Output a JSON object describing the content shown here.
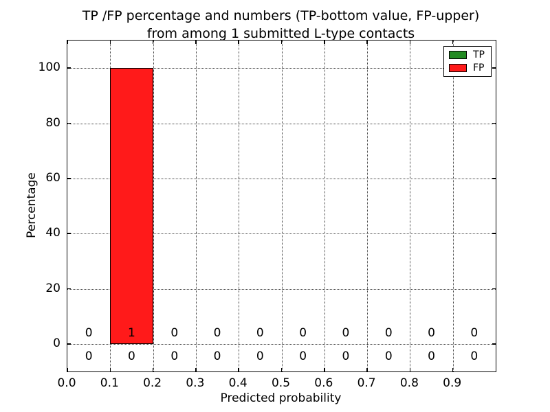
{
  "figure": {
    "background": "#ffffff"
  },
  "chart_data": {
    "type": "bar",
    "title_lines": [
      "TP /FP percentage and numbers (TP-bottom value, FP-upper)",
      "from among 1 submitted L-type contacts"
    ],
    "xlabel": "Predicted probability",
    "ylabel": "Percentage",
    "xlim": [
      0.0,
      1.0
    ],
    "ylim": [
      -10,
      110
    ],
    "xticks": [
      0.0,
      0.1,
      0.2,
      0.3,
      0.4,
      0.5,
      0.6,
      0.7,
      0.8,
      0.9
    ],
    "xtick_labels": [
      "0.0",
      "0.1",
      "0.2",
      "0.3",
      "0.4",
      "0.5",
      "0.6",
      "0.7",
      "0.8",
      "0.9"
    ],
    "yticks": [
      0,
      20,
      40,
      60,
      80,
      100
    ],
    "ytick_labels": [
      "0",
      "20",
      "40",
      "60",
      "80",
      "100"
    ],
    "grid": true,
    "grid_style": "dotted",
    "bin_centers": [
      0.05,
      0.15,
      0.25,
      0.35,
      0.45,
      0.55,
      0.65,
      0.75,
      0.85,
      0.95
    ],
    "bin_width": 0.1,
    "series": [
      {
        "name": "TP",
        "color": "#228b22",
        "percentages": [
          0,
          0,
          0,
          0,
          0,
          0,
          0,
          0,
          0,
          0
        ],
        "counts": [
          "0",
          "0",
          "0",
          "0",
          "0",
          "0",
          "0",
          "0",
          "0",
          "0"
        ],
        "count_row": "bottom"
      },
      {
        "name": "FP",
        "color": "#ff1a1a",
        "percentages": [
          0,
          100,
          0,
          0,
          0,
          0,
          0,
          0,
          0,
          0
        ],
        "counts": [
          "0",
          "1",
          "0",
          "0",
          "0",
          "0",
          "0",
          "0",
          "0",
          "0"
        ],
        "count_row": "upper"
      }
    ],
    "legend": {
      "position": "upper right",
      "entries": [
        {
          "label": "TP",
          "color": "#228b22"
        },
        {
          "label": "FP",
          "color": "#ff1a1a"
        }
      ]
    }
  }
}
